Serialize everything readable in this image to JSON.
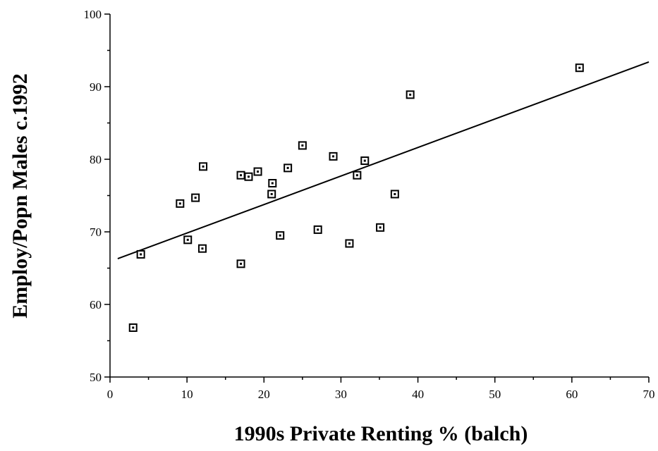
{
  "chart_data": {
    "type": "scatter",
    "xlabel": "1990s Private Renting % (balch)",
    "ylabel": "Employ/Popn Males c.1992",
    "xlim": [
      0,
      70
    ],
    "ylim": [
      50,
      100
    ],
    "xticks": [
      0,
      10,
      20,
      30,
      40,
      50,
      60,
      70
    ],
    "yticks": [
      50,
      60,
      70,
      80,
      90,
      100
    ],
    "xminorticks": [
      5,
      15,
      25,
      35,
      45,
      55,
      65
    ],
    "yminorticks": [
      55,
      65,
      75,
      85,
      95
    ],
    "color": "#000000",
    "series": [
      {
        "x": [
          3,
          4,
          9.1,
          10.1,
          11.1,
          12.1,
          12,
          17,
          17,
          18,
          19.2,
          21.1,
          21,
          22.1,
          23.1,
          25,
          27,
          29,
          31.1,
          32.1,
          33.1,
          35.1,
          37,
          39,
          61
        ],
        "values": [
          56.8,
          66.9,
          73.9,
          68.9,
          74.7,
          79.0,
          67.7,
          77.8,
          65.6,
          77.6,
          78.3,
          76.7,
          75.2,
          69.5,
          78.8,
          81.9,
          70.3,
          80.4,
          68.4,
          77.8,
          79.8,
          70.6,
          75.2,
          88.9,
          92.6
        ]
      }
    ],
    "trendline": {
      "x": [
        1,
        70
      ],
      "values": [
        66.3,
        93.4
      ]
    }
  }
}
